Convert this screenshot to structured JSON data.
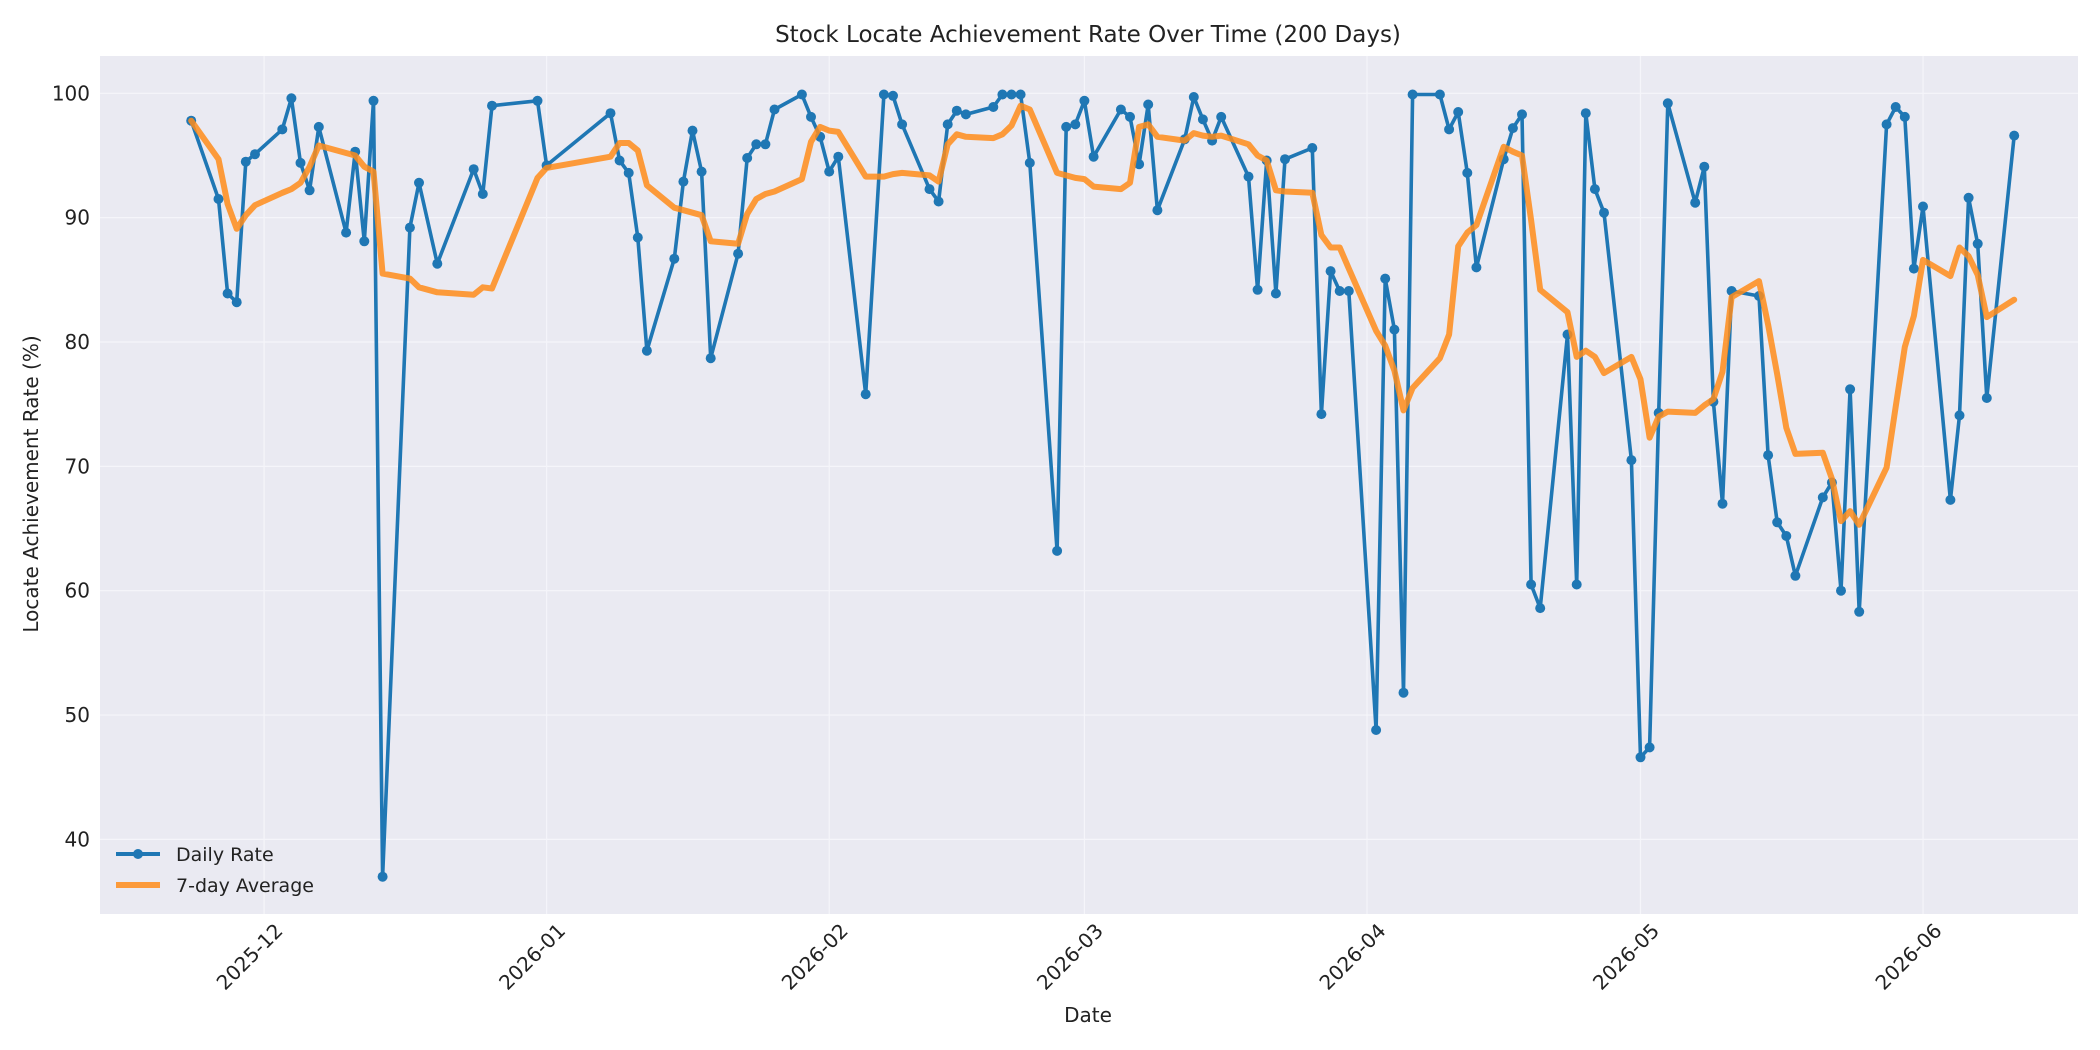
{
  "colors": {
    "daily": "#1f77b4",
    "average": "#ff8c1a",
    "plot_bg": "#eaeaf2",
    "grid": "#f5f5fa"
  },
  "chart_data": {
    "type": "line",
    "title": "Stock Locate Achievement Rate Over Time (200 Days)",
    "xlabel": "Date",
    "ylabel": "Locate Achievement Rate (%)",
    "xlim": [
      "2025-11-13",
      "2026-06-18"
    ],
    "ylim": [
      34,
      103
    ],
    "x_ticks": [
      "2025-12-01",
      "2026-01-01",
      "2026-02-01",
      "2026-03-01",
      "2026-04-01",
      "2026-05-01",
      "2026-06-01"
    ],
    "x_tick_labels": [
      "2025-12",
      "2026-01",
      "2026-02",
      "2026-03",
      "2026-04",
      "2026-05",
      "2026-06"
    ],
    "y_ticks": [
      40,
      50,
      60,
      70,
      80,
      90,
      100
    ],
    "grid": true,
    "legend_position": "bottom-left",
    "series": [
      {
        "name": "Daily Rate",
        "marker": "circle",
        "points": [
          [
            "2025-11-23",
            97.8
          ],
          [
            "2025-11-26",
            91.5
          ],
          [
            "2025-11-27",
            83.9
          ],
          [
            "2025-11-28",
            83.2
          ],
          [
            "2025-11-29",
            94.5
          ],
          [
            "2025-11-30",
            95.1
          ],
          [
            "2025-12-03",
            97.1
          ],
          [
            "2025-12-04",
            99.6
          ],
          [
            "2025-12-05",
            94.4
          ],
          [
            "2025-12-06",
            92.2
          ],
          [
            "2025-12-07",
            97.3
          ],
          [
            "2025-12-10",
            88.8
          ],
          [
            "2025-12-11",
            95.3
          ],
          [
            "2025-12-12",
            88.1
          ],
          [
            "2025-12-13",
            99.4
          ],
          [
            "2025-12-14",
            37.0
          ],
          [
            "2025-12-17",
            89.2
          ],
          [
            "2025-12-18",
            92.8
          ],
          [
            "2025-12-20",
            86.3
          ],
          [
            "2025-12-24",
            93.9
          ],
          [
            "2025-12-25",
            91.9
          ],
          [
            "2025-12-26",
            99.0
          ],
          [
            "2025-12-31",
            99.4
          ],
          [
            "2026-01-01",
            94.2
          ],
          [
            "2026-01-08",
            98.4
          ],
          [
            "2026-01-09",
            94.6
          ],
          [
            "2026-01-10",
            93.6
          ],
          [
            "2026-01-11",
            88.4
          ],
          [
            "2026-01-12",
            79.3
          ],
          [
            "2026-01-15",
            86.7
          ],
          [
            "2026-01-16",
            92.9
          ],
          [
            "2026-01-17",
            97.0
          ],
          [
            "2026-01-18",
            93.7
          ],
          [
            "2026-01-19",
            78.7
          ],
          [
            "2026-01-22",
            87.1
          ],
          [
            "2026-01-23",
            94.8
          ],
          [
            "2026-01-24",
            95.9
          ],
          [
            "2026-01-25",
            95.9
          ],
          [
            "2026-01-26",
            98.7
          ],
          [
            "2026-01-29",
            99.9
          ],
          [
            "2026-01-30",
            98.1
          ],
          [
            "2026-01-31",
            96.5
          ],
          [
            "2026-02-01",
            93.7
          ],
          [
            "2026-02-02",
            94.9
          ],
          [
            "2026-02-05",
            75.8
          ],
          [
            "2026-02-07",
            99.9
          ],
          [
            "2026-02-08",
            99.8
          ],
          [
            "2026-02-09",
            97.5
          ],
          [
            "2026-02-12",
            92.3
          ],
          [
            "2026-02-13",
            91.3
          ],
          [
            "2026-02-14",
            97.5
          ],
          [
            "2026-02-15",
            98.6
          ],
          [
            "2026-02-16",
            98.3
          ],
          [
            "2026-02-19",
            98.9
          ],
          [
            "2026-02-20",
            99.9
          ],
          [
            "2026-02-21",
            99.9
          ],
          [
            "2026-02-22",
            99.9
          ],
          [
            "2026-02-23",
            94.4
          ],
          [
            "2026-02-26",
            63.2
          ],
          [
            "2026-02-27",
            97.3
          ],
          [
            "2026-02-28",
            97.5
          ],
          [
            "2026-03-01",
            99.4
          ],
          [
            "2026-03-02",
            94.9
          ],
          [
            "2026-03-05",
            98.7
          ],
          [
            "2026-03-06",
            98.1
          ],
          [
            "2026-03-07",
            94.3
          ],
          [
            "2026-03-08",
            99.1
          ],
          [
            "2026-03-09",
            90.6
          ],
          [
            "2026-03-12",
            96.3
          ],
          [
            "2026-03-13",
            99.7
          ],
          [
            "2026-03-14",
            97.9
          ],
          [
            "2026-03-15",
            96.2
          ],
          [
            "2026-03-16",
            98.1
          ],
          [
            "2026-03-19",
            93.3
          ],
          [
            "2026-03-20",
            84.2
          ],
          [
            "2026-03-21",
            94.6
          ],
          [
            "2026-03-22",
            83.9
          ],
          [
            "2026-03-23",
            94.7
          ],
          [
            "2026-03-26",
            95.6
          ],
          [
            "2026-03-27",
            74.2
          ],
          [
            "2026-03-28",
            85.7
          ],
          [
            "2026-03-29",
            84.1
          ],
          [
            "2026-03-30",
            84.1
          ],
          [
            "2026-04-02",
            48.8
          ],
          [
            "2026-04-03",
            85.1
          ],
          [
            "2026-04-04",
            81.0
          ],
          [
            "2026-04-05",
            51.8
          ],
          [
            "2026-04-06",
            99.9
          ],
          [
            "2026-04-09",
            99.9
          ],
          [
            "2026-04-10",
            97.1
          ],
          [
            "2026-04-11",
            98.5
          ],
          [
            "2026-04-12",
            93.6
          ],
          [
            "2026-04-13",
            86.0
          ],
          [
            "2026-04-16",
            94.7
          ],
          [
            "2026-04-17",
            97.2
          ],
          [
            "2026-04-18",
            98.3
          ],
          [
            "2026-04-19",
            60.5
          ],
          [
            "2026-04-20",
            58.6
          ],
          [
            "2026-04-23",
            80.6
          ],
          [
            "2026-04-24",
            60.5
          ],
          [
            "2026-04-25",
            98.4
          ],
          [
            "2026-04-26",
            92.3
          ],
          [
            "2026-04-27",
            90.4
          ],
          [
            "2026-04-30",
            70.5
          ],
          [
            "2026-05-01",
            46.6
          ],
          [
            "2026-05-02",
            47.4
          ],
          [
            "2026-05-03",
            74.3
          ],
          [
            "2026-05-04",
            99.2
          ],
          [
            "2026-05-07",
            91.2
          ],
          [
            "2026-05-08",
            94.1
          ],
          [
            "2026-05-09",
            75.2
          ],
          [
            "2026-05-10",
            67.0
          ],
          [
            "2026-05-11",
            84.1
          ],
          [
            "2026-05-14",
            83.7
          ],
          [
            "2026-05-15",
            70.9
          ],
          [
            "2026-05-16",
            65.5
          ],
          [
            "2026-05-17",
            64.4
          ],
          [
            "2026-05-18",
            61.2
          ],
          [
            "2026-05-21",
            67.5
          ],
          [
            "2026-05-22",
            68.7
          ],
          [
            "2026-05-23",
            60.0
          ],
          [
            "2026-05-24",
            76.2
          ],
          [
            "2026-05-25",
            58.3
          ],
          [
            "2026-05-28",
            97.5
          ],
          [
            "2026-05-29",
            98.9
          ],
          [
            "2026-05-30",
            98.1
          ],
          [
            "2026-05-31",
            85.9
          ],
          [
            "2026-06-01",
            90.9
          ],
          [
            "2026-06-04",
            67.3
          ],
          [
            "2026-06-05",
            74.1
          ],
          [
            "2026-06-06",
            91.6
          ],
          [
            "2026-06-07",
            87.9
          ],
          [
            "2026-06-08",
            75.5
          ],
          [
            "2026-06-11",
            96.6
          ]
        ]
      },
      {
        "name": "7-day Average",
        "marker": "none",
        "points": [
          [
            "2025-11-23",
            97.8
          ],
          [
            "2025-11-26",
            94.7
          ],
          [
            "2025-11-27",
            91.1
          ],
          [
            "2025-11-28",
            89.1
          ],
          [
            "2025-11-29",
            90.2
          ],
          [
            "2025-11-30",
            91.0
          ],
          [
            "2025-12-03",
            92.0
          ],
          [
            "2025-12-04",
            92.3
          ],
          [
            "2025-12-05",
            92.8
          ],
          [
            "2025-12-06",
            94.1
          ],
          [
            "2025-12-07",
            95.8
          ],
          [
            "2025-12-10",
            95.2
          ],
          [
            "2025-12-11",
            95.0
          ],
          [
            "2025-12-12",
            94.1
          ],
          [
            "2025-12-13",
            93.7
          ],
          [
            "2025-12-14",
            85.5
          ],
          [
            "2025-12-17",
            85.1
          ],
          [
            "2025-12-18",
            84.4
          ],
          [
            "2025-12-20",
            84.0
          ],
          [
            "2025-12-24",
            83.8
          ],
          [
            "2025-12-25",
            84.4
          ],
          [
            "2025-12-26",
            84.3
          ],
          [
            "2025-12-31",
            93.2
          ],
          [
            "2026-01-01",
            94.0
          ],
          [
            "2026-01-08",
            94.9
          ],
          [
            "2026-01-09",
            96.0
          ],
          [
            "2026-01-10",
            96.0
          ],
          [
            "2026-01-11",
            95.4
          ],
          [
            "2026-01-12",
            92.6
          ],
          [
            "2026-01-15",
            90.8
          ],
          [
            "2026-01-16",
            90.6
          ],
          [
            "2026-01-17",
            90.4
          ],
          [
            "2026-01-18",
            90.2
          ],
          [
            "2026-01-19",
            88.1
          ],
          [
            "2026-01-22",
            87.9
          ],
          [
            "2026-01-23",
            90.3
          ],
          [
            "2026-01-24",
            91.5
          ],
          [
            "2026-01-25",
            91.9
          ],
          [
            "2026-01-26",
            92.1
          ],
          [
            "2026-01-29",
            93.1
          ],
          [
            "2026-01-30",
            96.1
          ],
          [
            "2026-01-31",
            97.3
          ],
          [
            "2026-02-01",
            97.0
          ],
          [
            "2026-02-02",
            96.9
          ],
          [
            "2026-02-05",
            93.3
          ],
          [
            "2026-02-07",
            93.3
          ],
          [
            "2026-02-08",
            93.5
          ],
          [
            "2026-02-09",
            93.6
          ],
          [
            "2026-02-12",
            93.4
          ],
          [
            "2026-02-13",
            92.9
          ],
          [
            "2026-02-14",
            95.9
          ],
          [
            "2026-02-15",
            96.7
          ],
          [
            "2026-02-16",
            96.5
          ],
          [
            "2026-02-19",
            96.4
          ],
          [
            "2026-02-20",
            96.7
          ],
          [
            "2026-02-21",
            97.4
          ],
          [
            "2026-02-22",
            99.0
          ],
          [
            "2026-02-23",
            98.7
          ],
          [
            "2026-02-26",
            93.6
          ],
          [
            "2026-02-27",
            93.4
          ],
          [
            "2026-02-28",
            93.2
          ],
          [
            "2026-03-01",
            93.1
          ],
          [
            "2026-03-02",
            92.5
          ],
          [
            "2026-03-05",
            92.3
          ],
          [
            "2026-03-06",
            92.8
          ],
          [
            "2026-03-07",
            97.3
          ],
          [
            "2026-03-08",
            97.5
          ],
          [
            "2026-03-09",
            96.5
          ],
          [
            "2026-03-12",
            96.2
          ],
          [
            "2026-03-13",
            96.8
          ],
          [
            "2026-03-14",
            96.6
          ],
          [
            "2026-03-15",
            96.5
          ],
          [
            "2026-03-16",
            96.6
          ],
          [
            "2026-03-19",
            95.9
          ],
          [
            "2026-03-20",
            95.0
          ],
          [
            "2026-03-21",
            94.6
          ],
          [
            "2026-03-22",
            92.2
          ],
          [
            "2026-03-23",
            92.1
          ],
          [
            "2026-03-26",
            92.0
          ],
          [
            "2026-03-27",
            88.6
          ],
          [
            "2026-03-28",
            87.6
          ],
          [
            "2026-03-29",
            87.6
          ],
          [
            "2026-03-30",
            85.9
          ],
          [
            "2026-04-02",
            80.9
          ],
          [
            "2026-04-03",
            79.7
          ],
          [
            "2026-04-04",
            77.7
          ],
          [
            "2026-04-05",
            74.5
          ],
          [
            "2026-04-06",
            76.3
          ],
          [
            "2026-04-09",
            78.7
          ],
          [
            "2026-04-10",
            80.6
          ],
          [
            "2026-04-11",
            87.7
          ],
          [
            "2026-04-12",
            88.8
          ],
          [
            "2026-04-13",
            89.4
          ],
          [
            "2026-04-16",
            95.7
          ],
          [
            "2026-04-17",
            95.3
          ],
          [
            "2026-04-18",
            95.0
          ],
          [
            "2026-04-19",
            89.8
          ],
          [
            "2026-04-20",
            84.2
          ],
          [
            "2026-04-23",
            82.4
          ],
          [
            "2026-04-24",
            78.8
          ],
          [
            "2026-04-25",
            79.3
          ],
          [
            "2026-04-26",
            78.8
          ],
          [
            "2026-04-27",
            77.5
          ],
          [
            "2026-04-30",
            78.8
          ],
          [
            "2026-05-01",
            77.0
          ],
          [
            "2026-05-02",
            72.3
          ],
          [
            "2026-05-03",
            74.0
          ],
          [
            "2026-05-04",
            74.4
          ],
          [
            "2026-05-07",
            74.3
          ],
          [
            "2026-05-08",
            74.9
          ],
          [
            "2026-05-09",
            75.4
          ],
          [
            "2026-05-10",
            77.6
          ],
          [
            "2026-05-11",
            83.6
          ],
          [
            "2026-05-14",
            84.9
          ],
          [
            "2026-05-15",
            81.4
          ],
          [
            "2026-05-16",
            77.4
          ],
          [
            "2026-05-17",
            73.1
          ],
          [
            "2026-05-18",
            71.0
          ],
          [
            "2026-05-21",
            71.1
          ],
          [
            "2026-05-22",
            69.0
          ],
          [
            "2026-05-23",
            65.6
          ],
          [
            "2026-05-24",
            66.4
          ],
          [
            "2026-05-25",
            65.3
          ],
          [
            "2026-05-28",
            69.9
          ],
          [
            "2026-05-29",
            74.8
          ],
          [
            "2026-05-30",
            79.6
          ],
          [
            "2026-05-31",
            82.1
          ],
          [
            "2026-06-01",
            86.6
          ],
          [
            "2026-06-04",
            85.3
          ],
          [
            "2026-06-05",
            87.6
          ],
          [
            "2026-06-06",
            86.9
          ],
          [
            "2026-06-07",
            85.4
          ],
          [
            "2026-06-08",
            82.0
          ],
          [
            "2026-06-11",
            83.4
          ]
        ]
      }
    ]
  }
}
